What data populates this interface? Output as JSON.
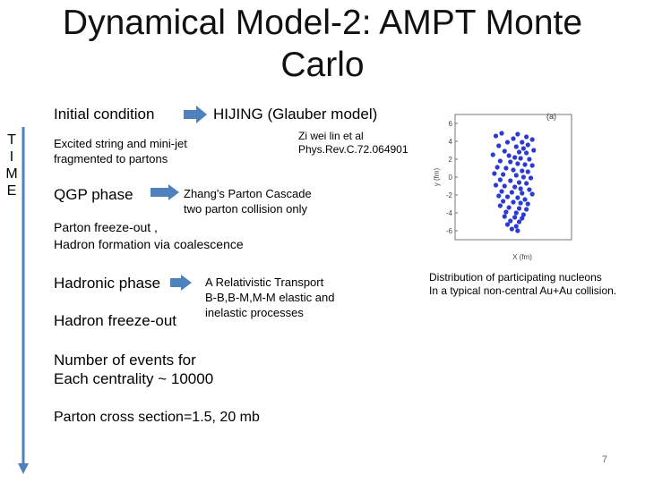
{
  "slide": {
    "title": "Dynamical Model-2:  AMPT Monte Carlo",
    "time_letters": [
      "T",
      "I",
      "M",
      "E"
    ],
    "initial_condition": "Initial condition",
    "hijing": "HIJING (Glauber model)",
    "citation_line1": "Zi wei lin et al",
    "citation_line2": "Phys.Rev.C.72.064901",
    "excited_line1": "Excited string and mini-jet",
    "excited_line2": "fragmented to partons",
    "qgp_phase": "QGP phase",
    "zhang_line1": "Zhang's Parton Cascade",
    "zhang_line2": "two parton collision only",
    "freezeout_line1": "Parton freeze-out ,",
    "freezeout_line2": "Hadron formation via coalescence",
    "hadronic_phase": "Hadronic phase",
    "art_line1": "A Relativistic Transport",
    "art_line2": "B-B,B-M,M-M elastic and",
    "art_line3": "inelastic processes",
    "hadron_freezeout": "Hadron freeze-out",
    "events_line1": "Number of events for",
    "events_line2": "Each centrality ~ 10000",
    "cross_section": "Parton cross section=1.5, 20 mb",
    "figure_caption_line1": "Distribution of participating nucleons",
    "figure_caption_line2": "In a typical non-central Au+Au collision.",
    "page_number": "7"
  },
  "colors": {
    "arrow": "#4f81bd",
    "nucleon": "#2b3bd1"
  },
  "chart_data": {
    "type": "scatter",
    "panel_label": "(a)",
    "xlabel": "X (fm)",
    "ylabel": "y (fm)",
    "ylim": [
      -7,
      7
    ],
    "yticks": [
      6,
      4,
      2,
      0,
      -2,
      -4,
      -6
    ],
    "x": [
      -1.2,
      -0.8,
      0.3,
      0.9,
      1.3,
      0.0,
      -0.4,
      0.6,
      1.0,
      -1.0,
      0.2,
      0.7,
      1.4,
      -0.6,
      0.4,
      0.9,
      -1.4,
      -0.3,
      0.1,
      0.5,
      1.1,
      -0.9,
      -0.2,
      0.3,
      0.8,
      1.3,
      -1.1,
      -0.5,
      0.0,
      0.6,
      1.0,
      -1.3,
      -0.7,
      0.2,
      0.7,
      1.2,
      -0.9,
      -0.2,
      0.4,
      0.9,
      -1.2,
      -0.6,
      0.1,
      0.5,
      1.1,
      -0.8,
      -0.1,
      0.6,
      1.3,
      -1.0,
      -0.4,
      0.3,
      0.8,
      -0.7,
      0.0,
      0.5,
      1.0,
      -0.9,
      -0.3,
      0.4,
      0.9,
      -0.5,
      0.2,
      0.7,
      -0.6,
      0.1,
      0.6,
      -0.2,
      0.4,
      -0.4,
      0.2,
      -0.1,
      0.3
    ],
    "y": [
      4.6,
      4.9,
      4.8,
      4.5,
      4.2,
      4.3,
      3.9,
      3.9,
      3.6,
      3.5,
      3.4,
      3.2,
      3.0,
      2.9,
      2.8,
      2.7,
      2.5,
      2.4,
      2.2,
      2.1,
      2.0,
      1.8,
      1.7,
      1.5,
      1.4,
      1.3,
      1.1,
      1.0,
      0.8,
      0.7,
      0.6,
      0.4,
      0.3,
      0.2,
      0.0,
      -0.1,
      -0.3,
      -0.4,
      -0.6,
      -0.7,
      -0.9,
      -1.0,
      -1.1,
      -1.3,
      -1.4,
      -1.6,
      -1.7,
      -1.8,
      -1.9,
      -2.1,
      -2.2,
      -2.3,
      -2.5,
      -2.7,
      -2.8,
      -2.9,
      -3.0,
      -3.2,
      -3.4,
      -3.5,
      -3.6,
      -3.9,
      -4.0,
      -4.2,
      -4.4,
      -4.5,
      -4.6,
      -4.9,
      -5.0,
      -5.3,
      -5.5,
      -5.8,
      -6.0
    ],
    "grid": false
  }
}
